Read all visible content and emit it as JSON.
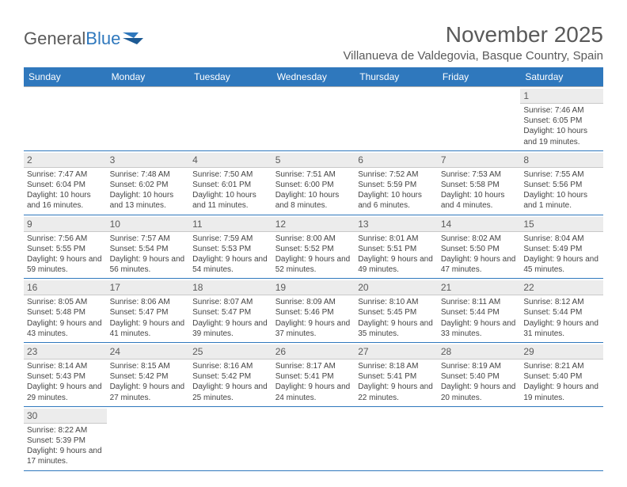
{
  "logo": {
    "part1": "General",
    "part2": "Blue"
  },
  "title": "November 2025",
  "location": "Villanueva de Valdegovia, Basque Country, Spain",
  "colors": {
    "header_bg": "#2f78bd",
    "header_text": "#ffffff",
    "daynum_bg": "#ececec",
    "text": "#5a5a5a",
    "row_border": "#2f78bd"
  },
  "daynames": [
    "Sunday",
    "Monday",
    "Tuesday",
    "Wednesday",
    "Thursday",
    "Friday",
    "Saturday"
  ],
  "weeks": [
    [
      null,
      null,
      null,
      null,
      null,
      null,
      {
        "n": "1",
        "sr": "7:46 AM",
        "ss": "6:05 PM",
        "dl": "10 hours and 19 minutes."
      }
    ],
    [
      {
        "n": "2",
        "sr": "7:47 AM",
        "ss": "6:04 PM",
        "dl": "10 hours and 16 minutes."
      },
      {
        "n": "3",
        "sr": "7:48 AM",
        "ss": "6:02 PM",
        "dl": "10 hours and 13 minutes."
      },
      {
        "n": "4",
        "sr": "7:50 AM",
        "ss": "6:01 PM",
        "dl": "10 hours and 11 minutes."
      },
      {
        "n": "5",
        "sr": "7:51 AM",
        "ss": "6:00 PM",
        "dl": "10 hours and 8 minutes."
      },
      {
        "n": "6",
        "sr": "7:52 AM",
        "ss": "5:59 PM",
        "dl": "10 hours and 6 minutes."
      },
      {
        "n": "7",
        "sr": "7:53 AM",
        "ss": "5:58 PM",
        "dl": "10 hours and 4 minutes."
      },
      {
        "n": "8",
        "sr": "7:55 AM",
        "ss": "5:56 PM",
        "dl": "10 hours and 1 minute."
      }
    ],
    [
      {
        "n": "9",
        "sr": "7:56 AM",
        "ss": "5:55 PM",
        "dl": "9 hours and 59 minutes."
      },
      {
        "n": "10",
        "sr": "7:57 AM",
        "ss": "5:54 PM",
        "dl": "9 hours and 56 minutes."
      },
      {
        "n": "11",
        "sr": "7:59 AM",
        "ss": "5:53 PM",
        "dl": "9 hours and 54 minutes."
      },
      {
        "n": "12",
        "sr": "8:00 AM",
        "ss": "5:52 PM",
        "dl": "9 hours and 52 minutes."
      },
      {
        "n": "13",
        "sr": "8:01 AM",
        "ss": "5:51 PM",
        "dl": "9 hours and 49 minutes."
      },
      {
        "n": "14",
        "sr": "8:02 AM",
        "ss": "5:50 PM",
        "dl": "9 hours and 47 minutes."
      },
      {
        "n": "15",
        "sr": "8:04 AM",
        "ss": "5:49 PM",
        "dl": "9 hours and 45 minutes."
      }
    ],
    [
      {
        "n": "16",
        "sr": "8:05 AM",
        "ss": "5:48 PM",
        "dl": "9 hours and 43 minutes."
      },
      {
        "n": "17",
        "sr": "8:06 AM",
        "ss": "5:47 PM",
        "dl": "9 hours and 41 minutes."
      },
      {
        "n": "18",
        "sr": "8:07 AM",
        "ss": "5:47 PM",
        "dl": "9 hours and 39 minutes."
      },
      {
        "n": "19",
        "sr": "8:09 AM",
        "ss": "5:46 PM",
        "dl": "9 hours and 37 minutes."
      },
      {
        "n": "20",
        "sr": "8:10 AM",
        "ss": "5:45 PM",
        "dl": "9 hours and 35 minutes."
      },
      {
        "n": "21",
        "sr": "8:11 AM",
        "ss": "5:44 PM",
        "dl": "9 hours and 33 minutes."
      },
      {
        "n": "22",
        "sr": "8:12 AM",
        "ss": "5:44 PM",
        "dl": "9 hours and 31 minutes."
      }
    ],
    [
      {
        "n": "23",
        "sr": "8:14 AM",
        "ss": "5:43 PM",
        "dl": "9 hours and 29 minutes."
      },
      {
        "n": "24",
        "sr": "8:15 AM",
        "ss": "5:42 PM",
        "dl": "9 hours and 27 minutes."
      },
      {
        "n": "25",
        "sr": "8:16 AM",
        "ss": "5:42 PM",
        "dl": "9 hours and 25 minutes."
      },
      {
        "n": "26",
        "sr": "8:17 AM",
        "ss": "5:41 PM",
        "dl": "9 hours and 24 minutes."
      },
      {
        "n": "27",
        "sr": "8:18 AM",
        "ss": "5:41 PM",
        "dl": "9 hours and 22 minutes."
      },
      {
        "n": "28",
        "sr": "8:19 AM",
        "ss": "5:40 PM",
        "dl": "9 hours and 20 minutes."
      },
      {
        "n": "29",
        "sr": "8:21 AM",
        "ss": "5:40 PM",
        "dl": "9 hours and 19 minutes."
      }
    ],
    [
      {
        "n": "30",
        "sr": "8:22 AM",
        "ss": "5:39 PM",
        "dl": "9 hours and 17 minutes."
      },
      null,
      null,
      null,
      null,
      null,
      null
    ]
  ],
  "labels": {
    "sunrise": "Sunrise:",
    "sunset": "Sunset:",
    "daylight": "Daylight:"
  }
}
